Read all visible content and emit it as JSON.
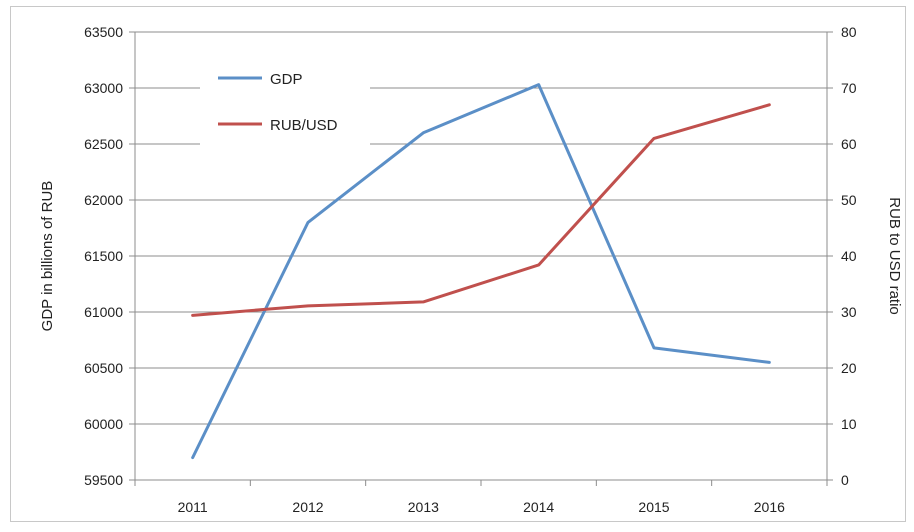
{
  "chart_data": {
    "type": "line",
    "categories": [
      "2011",
      "2012",
      "2013",
      "2014",
      "2015",
      "2016"
    ],
    "series": [
      {
        "name": "GDP",
        "axis": "left",
        "color": "#5b8fc7",
        "values": [
          59700,
          61800,
          62600,
          63030,
          60680,
          60550
        ]
      },
      {
        "name": "RUB/USD",
        "axis": "right",
        "color": "#c0504d",
        "values": [
          29.4,
          31.1,
          31.8,
          38.4,
          61.0,
          67.0
        ]
      }
    ],
    "ylabel": "GDP in billions of RUB",
    "y2label": "RUB to USD ratio",
    "ylim": [
      59500,
      63500
    ],
    "yticks": [
      59500,
      60000,
      60500,
      61000,
      61500,
      62000,
      62500,
      63000,
      63500
    ],
    "y2lim": [
      0,
      80
    ],
    "y2ticks": [
      0,
      10,
      20,
      30,
      40,
      50,
      60,
      70,
      80
    ],
    "grid": "horizontal",
    "legend": "top-left"
  }
}
